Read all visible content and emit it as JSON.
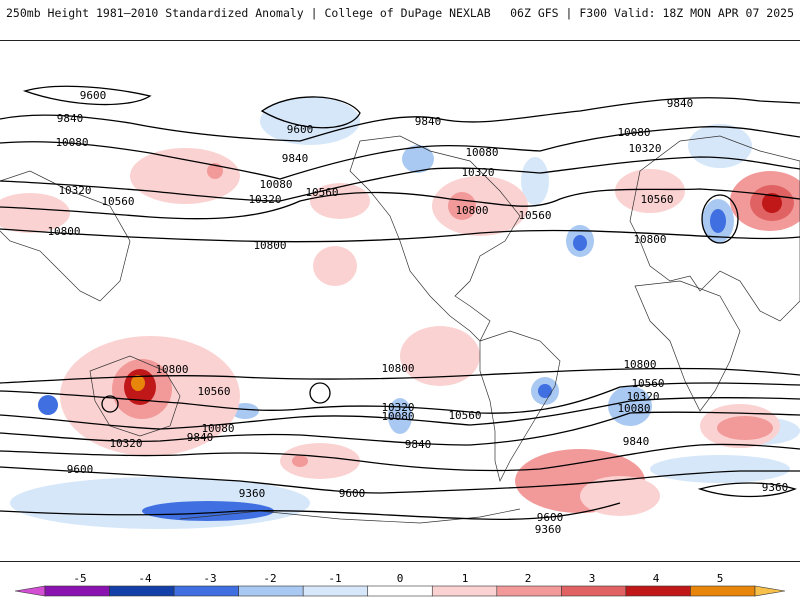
{
  "header": {
    "left_title": "250mb Height 1981–2010 Standardized Anomaly | College of DuPage NEXLAB",
    "right_title": "06Z GFS | F300 Valid: 18Z MON APR 07 2025"
  },
  "colorbar": {
    "ticks": [
      "-5",
      "-4",
      "-3",
      "-2",
      "-1",
      "0",
      "1",
      "2",
      "3",
      "4",
      "5"
    ],
    "colors": [
      "#d24fd4",
      "#8a12b0",
      "#1240a8",
      "#3f6fe0",
      "#a9c9f2",
      "#d6e7fa",
      "#ffffff",
      "#fbd2d2",
      "#f29a9a",
      "#e06262",
      "#c01818",
      "#e8860b",
      "#f7c04a"
    ]
  },
  "contours": [
    {
      "label": "9600"
    },
    {
      "label": "9840"
    },
    {
      "label": "10080"
    },
    {
      "label": "10320"
    },
    {
      "label": "10560"
    },
    {
      "label": "10800"
    },
    {
      "label": "9360"
    }
  ],
  "contour_labels": [
    {
      "text": "9600"
    },
    {
      "text": "9840"
    },
    {
      "text": "10080"
    },
    {
      "text": "10320"
    },
    {
      "text": "10560"
    },
    {
      "text": "10800"
    },
    {
      "text": "9600"
    },
    {
      "text": "9840"
    },
    {
      "text": "9840"
    },
    {
      "text": "10080"
    },
    {
      "text": "10320"
    },
    {
      "text": "10560"
    },
    {
      "text": "10800"
    },
    {
      "text": "10080"
    },
    {
      "text": "10320"
    },
    {
      "text": "10560"
    },
    {
      "text": "10800"
    },
    {
      "text": "9840"
    },
    {
      "text": "10080"
    },
    {
      "text": "10320"
    },
    {
      "text": "10560"
    },
    {
      "text": "10800"
    },
    {
      "text": "10800"
    },
    {
      "text": "10560"
    },
    {
      "text": "10320"
    },
    {
      "text": "10080"
    },
    {
      "text": "9840"
    },
    {
      "text": "9600"
    },
    {
      "text": "10800"
    },
    {
      "text": "10320"
    },
    {
      "text": "10080"
    },
    {
      "text": "10560"
    },
    {
      "text": "9840"
    },
    {
      "text": "9600"
    },
    {
      "text": "9360"
    },
    {
      "text": "10800"
    },
    {
      "text": "10560"
    },
    {
      "text": "10320"
    },
    {
      "text": "10080"
    },
    {
      "text": "9840"
    },
    {
      "text": "9600"
    },
    {
      "text": "9360"
    },
    {
      "text": "9360"
    }
  ]
}
